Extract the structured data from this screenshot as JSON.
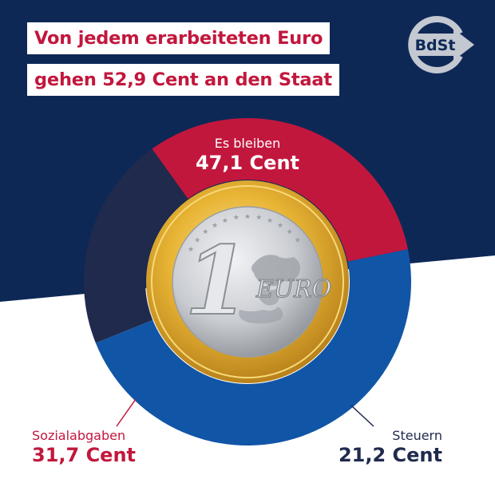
{
  "colors": {
    "navy": "#0e2856",
    "blue": "#1155a6",
    "red": "#c2173d",
    "darknavy": "#1f2a4d",
    "gold": "#e8b535",
    "silver": "#c9ccd1"
  },
  "header": {
    "line1": "Von jedem erarbeiteten Euro",
    "line2": "gehen 52,9 Cent an den Staat"
  },
  "logo": {
    "text": "BdSt",
    "icon": "bdst-logo-arrow-icon"
  },
  "coin": {
    "numeral": "1",
    "label": "EURO",
    "icon": "euro-coin-icon"
  },
  "chart_data": {
    "type": "pie",
    "variant": "donut",
    "unit": "Cent",
    "slices": [
      {
        "name": "Es bleiben",
        "value": 47.1,
        "value_label": "47,1 Cent",
        "color": "#1155a6"
      },
      {
        "name": "Steuern",
        "value": 21.2,
        "value_label": "21,2 Cent",
        "color": "#1f2a4d"
      },
      {
        "name": "Sozialabgaben",
        "value": 31.7,
        "value_label": "31,7 Cent",
        "color": "#c2173d"
      }
    ]
  }
}
